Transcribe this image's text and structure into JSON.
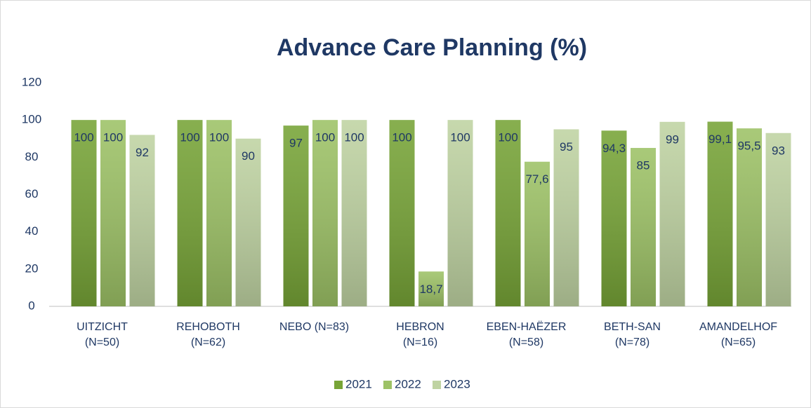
{
  "chart_data": {
    "type": "bar",
    "title": "Advance Care Planning (%)",
    "categories": [
      "UITZICHT (N=50)",
      "REHOBOTH (N=62)",
      "NEBO (N=83)",
      "HEBRON (N=16)",
      "EBEN-HAËZER (N=58)",
      "BETH-SAN (N=78)",
      "AMANDELHOF (N=65)"
    ],
    "series": [
      {
        "name": "2021",
        "color": "#77a437",
        "values": [
          100,
          100,
          97,
          100,
          100,
          94.3,
          99.1
        ],
        "value_labels": [
          "100",
          "100",
          "97",
          "100",
          "100",
          "94,3",
          "99,1"
        ]
      },
      {
        "name": "2022",
        "color": "#9dc266",
        "values": [
          100,
          100,
          100,
          18.7,
          77.6,
          85,
          95.5
        ],
        "value_labels": [
          "100",
          "100",
          "100",
          "18,7",
          "77,6",
          "85",
          "95,5"
        ]
      },
      {
        "name": "2023",
        "color": "#bfd3a2",
        "values": [
          92,
          90,
          100,
          100,
          95,
          99,
          93
        ],
        "value_labels": [
          "92",
          "90",
          "100",
          "100",
          "95",
          "99",
          "93"
        ]
      }
    ],
    "ylim": [
      0,
      120
    ],
    "yticks": [
      0,
      20,
      40,
      60,
      80,
      100,
      120
    ],
    "grid": false,
    "legend": "bottom"
  }
}
